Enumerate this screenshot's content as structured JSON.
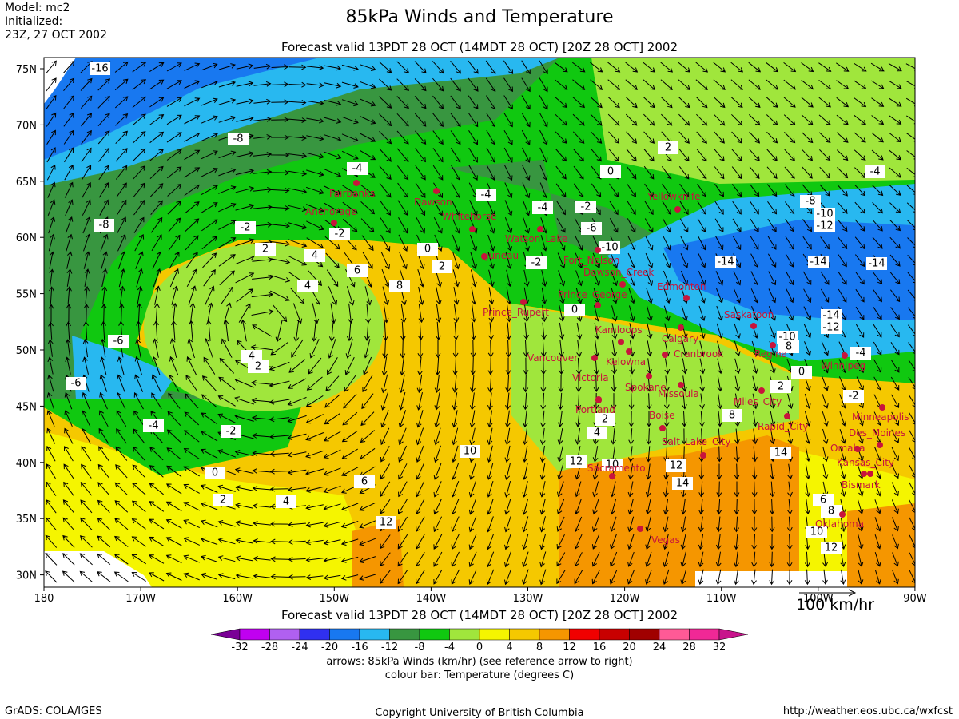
{
  "header": {
    "model": "Model: mc2",
    "initialized": "Initialized:",
    "init_time": "23Z, 27 OCT 2002",
    "title": "85kPa Winds and Temperature",
    "subtitle": "Forecast valid 13PDT 28 OCT (14MDT 28 OCT) [20Z 28 OCT] 2002"
  },
  "map": {
    "lat_labels": [
      "75N",
      "70N",
      "65N",
      "60N",
      "55N",
      "50N",
      "45N",
      "40N",
      "35N",
      "30N"
    ],
    "lon_labels": [
      "180",
      "170W",
      "160W",
      "150W",
      "140W",
      "130W",
      "120W",
      "110W",
      "100W",
      "90W"
    ],
    "contour_labels": [
      -16,
      -8,
      -4,
      2,
      0,
      -4,
      -4,
      -4,
      -2,
      -8,
      -2,
      -2,
      2,
      4,
      0,
      -6,
      -10,
      -8,
      -10,
      -12,
      -14,
      -14,
      -14,
      6,
      8,
      2,
      -2,
      4,
      0,
      -6,
      4,
      2,
      -14,
      -12,
      -10,
      8,
      -4,
      0,
      -6,
      -2,
      2,
      8,
      -4,
      -2,
      2,
      4,
      0,
      10,
      12,
      10,
      12,
      14,
      14,
      2,
      4,
      6,
      12,
      6,
      8,
      10,
      12
    ],
    "cities": [
      "Fairbanks",
      "Anchorage",
      "Dawson",
      "Whitehorse",
      "Yellowknife",
      "Watson_Lake",
      "Juneau",
      "Fort_Nelson",
      "Dawson_Creek",
      "Prince_George",
      "Edmonton",
      "Prince_Rupert",
      "Kamloops",
      "Calgary",
      "Saskatoon",
      "Regina",
      "Vancouver",
      "Kelowna",
      "Cranbrook",
      "Winnipeg",
      "Victoria",
      "Spokane",
      "Missoula",
      "Portland",
      "Miles_City",
      "Boise",
      "Minneapolis",
      "Rapid_City",
      "Des_Moines",
      "Salt_Lake_City",
      "Omaha",
      "Kansas_City",
      "Sacramento",
      "Bismark",
      "Oklahoma",
      "Vegas"
    ],
    "reference_arrow": "100 km/hr",
    "bottom_subtitle": "Forecast valid 13PDT 28 OCT (14MDT 28 OCT) [20Z 28 OCT] 2002"
  },
  "colorbar": {
    "levels": [
      -32,
      -28,
      -24,
      -20,
      -16,
      -12,
      -8,
      -4,
      0,
      4,
      8,
      12,
      16,
      20,
      24,
      28,
      32
    ],
    "colors": [
      "#7a0096",
      "#c000f0",
      "#b060f0",
      "#3030f0",
      "#1878f0",
      "#28b8f0",
      "#389640",
      "#10c810",
      "#a0e63c",
      "#f5f500",
      "#f5c800",
      "#f59600",
      "#f00000",
      "#c80000",
      "#a00000",
      "#ff5a96",
      "#f02896",
      "#c8148c"
    ],
    "caption_arrows": "arrows: 85kPa Winds (km/hr) (see reference arrow to right)",
    "caption_colour": "colour bar: Temperature (degrees C)"
  },
  "footer": {
    "left": "GrADS: COLA/IGES",
    "center": "Copyright University of British Columbia",
    "right": "http://weather.eos.ubc.ca/wxfcst"
  }
}
